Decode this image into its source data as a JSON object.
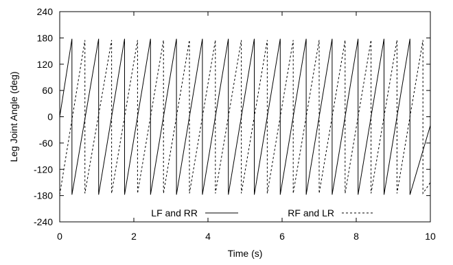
{
  "chart_data": {
    "type": "line",
    "title": "",
    "xlabel": "Time (s)",
    "ylabel": "Leg Joint Angle (deg)",
    "xlim": [
      0,
      10
    ],
    "ylim": [
      -240,
      240
    ],
    "x_ticks": [
      "0",
      "2",
      "4",
      "6",
      "8",
      "10"
    ],
    "y_ticks": [
      "-240",
      "-180",
      "-120",
      "-60",
      "0",
      "60",
      "120",
      "180"
    ],
    "y_ticks_right": [
      "240"
    ],
    "grid": false,
    "legend_position": "bottom",
    "series": [
      {
        "name": "LF and RR",
        "style": "solid",
        "color": "#000000",
        "x": [
          0.0,
          0.33,
          0.33,
          1.05,
          1.05,
          1.75,
          1.75,
          2.45,
          2.45,
          3.15,
          3.15,
          3.85,
          3.85,
          4.55,
          4.55,
          5.25,
          5.25,
          5.95,
          5.95,
          6.65,
          6.65,
          7.35,
          7.35,
          8.05,
          8.05,
          8.75,
          8.75,
          9.45,
          9.45,
          10.0
        ],
        "y": [
          0,
          178,
          -178,
          178,
          -178,
          178,
          -178,
          178,
          -178,
          178,
          -178,
          178,
          -178,
          178,
          -178,
          178,
          -178,
          178,
          -178,
          178,
          -178,
          178,
          -178,
          178,
          -178,
          178,
          -178,
          178,
          -178,
          -20
        ]
      },
      {
        "name": "RF and LR",
        "style": "dashed",
        "color": "#000000",
        "x": [
          0.0,
          0.68,
          0.68,
          1.4,
          1.4,
          2.1,
          2.1,
          2.8,
          2.8,
          3.5,
          3.5,
          4.2,
          4.2,
          4.9,
          4.9,
          5.6,
          5.6,
          6.3,
          6.3,
          7.0,
          7.0,
          7.7,
          7.7,
          8.4,
          8.4,
          9.1,
          9.1,
          9.8,
          9.8,
          10.0
        ],
        "y": [
          -178,
          175,
          -175,
          175,
          -175,
          175,
          -175,
          175,
          -175,
          175,
          -175,
          175,
          -175,
          175,
          -175,
          175,
          -175,
          175,
          -175,
          175,
          -175,
          175,
          -175,
          175,
          -175,
          175,
          -175,
          175,
          -175,
          -150
        ]
      }
    ]
  }
}
